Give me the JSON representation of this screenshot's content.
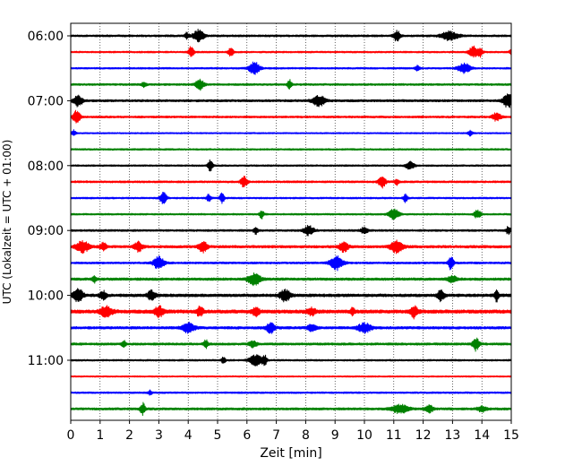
{
  "chart_data": {
    "type": "line",
    "title": "",
    "xlabel": "Zeit  [min]",
    "ylabel": "UTC (Lokalzeit = UTC + 01:00)",
    "xlim": [
      0,
      15
    ],
    "x_ticks": [
      "0",
      "1",
      "2",
      "3",
      "4",
      "5",
      "6",
      "7",
      "8",
      "9",
      "10",
      "11",
      "12",
      "13",
      "14",
      "15"
    ],
    "y_ticks": [
      "06:00",
      "07:00",
      "08:00",
      "09:00",
      "10:00",
      "11:00"
    ],
    "grid": "vertical dotted lines at each minute",
    "trace_interval_min": 15,
    "start_time": "06:00",
    "colors_cycle": [
      "#000000",
      "#ff0000",
      "#0000ff",
      "#008000"
    ],
    "traces": [
      {
        "start": "06:00",
        "color": "#000000",
        "noise": 0.35,
        "events": [
          [
            4.35,
            2.2,
            0.12
          ],
          [
            11.1,
            1.8,
            0.08
          ],
          [
            12.9,
            1.5,
            0.2
          ],
          [
            3.95,
            1.0,
            0.05
          ]
        ]
      },
      {
        "start": "06:15",
        "color": "#ff0000",
        "noise": 0.3,
        "events": [
          [
            4.1,
            2.0,
            0.06
          ],
          [
            5.45,
            1.4,
            0.06
          ],
          [
            13.7,
            2.0,
            0.1
          ],
          [
            13.95,
            1.6,
            0.06
          ],
          [
            15.0,
            1.2,
            0.04
          ]
        ]
      },
      {
        "start": "06:30",
        "color": "#0000ff",
        "noise": 0.3,
        "events": [
          [
            6.25,
            2.4,
            0.12
          ],
          [
            13.4,
            1.7,
            0.15
          ],
          [
            11.8,
            1.1,
            0.05
          ]
        ]
      },
      {
        "start": "06:45",
        "color": "#008000",
        "noise": 0.35,
        "events": [
          [
            4.4,
            1.8,
            0.1
          ],
          [
            7.45,
            1.6,
            0.05
          ],
          [
            2.5,
            0.9,
            0.05
          ]
        ]
      },
      {
        "start": "07:00",
        "color": "#000000",
        "noise": 0.4,
        "events": [
          [
            0.25,
            2.0,
            0.1
          ],
          [
            8.45,
            1.8,
            0.15
          ],
          [
            14.9,
            2.4,
            0.12
          ]
        ]
      },
      {
        "start": "07:15",
        "color": "#ff0000",
        "noise": 0.35,
        "events": [
          [
            0.2,
            2.4,
            0.08
          ],
          [
            14.5,
            1.4,
            0.1
          ]
        ]
      },
      {
        "start": "07:30",
        "color": "#0000ff",
        "noise": 0.25,
        "events": [
          [
            0.1,
            1.0,
            0.05
          ],
          [
            13.6,
            1.1,
            0.05
          ]
        ]
      },
      {
        "start": "07:45",
        "color": "#008000",
        "noise": 0.3,
        "events": []
      },
      {
        "start": "08:00",
        "color": "#000000",
        "noise": 0.3,
        "events": [
          [
            4.75,
            1.8,
            0.06
          ],
          [
            11.55,
            1.3,
            0.1
          ]
        ]
      },
      {
        "start": "08:15",
        "color": "#ff0000",
        "noise": 0.35,
        "events": [
          [
            5.9,
            1.8,
            0.08
          ],
          [
            10.6,
            2.2,
            0.08
          ],
          [
            11.1,
            1.2,
            0.05
          ]
        ]
      },
      {
        "start": "08:30",
        "color": "#0000ff",
        "noise": 0.3,
        "events": [
          [
            3.15,
            2.0,
            0.08
          ],
          [
            4.7,
            1.4,
            0.05
          ],
          [
            5.15,
            2.0,
            0.05
          ],
          [
            11.4,
            1.4,
            0.05
          ]
        ]
      },
      {
        "start": "08:45",
        "color": "#008000",
        "noise": 0.3,
        "events": [
          [
            6.5,
            1.6,
            0.05
          ],
          [
            11.0,
            1.8,
            0.12
          ],
          [
            13.85,
            1.4,
            0.08
          ]
        ]
      },
      {
        "start": "09:00",
        "color": "#000000",
        "noise": 0.35,
        "events": [
          [
            6.3,
            1.2,
            0.05
          ],
          [
            8.1,
            1.6,
            0.12
          ],
          [
            10.0,
            1.2,
            0.08
          ],
          [
            14.9,
            1.4,
            0.05
          ]
        ]
      },
      {
        "start": "09:15",
        "color": "#ff0000",
        "noise": 0.45,
        "events": [
          [
            0.4,
            2.0,
            0.15
          ],
          [
            2.3,
            1.6,
            0.1
          ],
          [
            4.5,
            2.0,
            0.1
          ],
          [
            9.3,
            1.8,
            0.1
          ],
          [
            11.1,
            2.0,
            0.15
          ],
          [
            1.1,
            1.2,
            0.08
          ]
        ]
      },
      {
        "start": "09:30",
        "color": "#0000ff",
        "noise": 0.35,
        "events": [
          [
            3.0,
            2.4,
            0.12
          ],
          [
            9.05,
            2.4,
            0.15
          ],
          [
            12.95,
            2.6,
            0.06
          ]
        ]
      },
      {
        "start": "09:45",
        "color": "#008000",
        "noise": 0.45,
        "events": [
          [
            6.25,
            2.0,
            0.15
          ],
          [
            0.8,
            1.2,
            0.05
          ],
          [
            13.0,
            1.2,
            0.1
          ]
        ]
      },
      {
        "start": "10:00",
        "color": "#000000",
        "noise": 0.5,
        "events": [
          [
            0.25,
            2.2,
            0.12
          ],
          [
            2.75,
            1.6,
            0.1
          ],
          [
            7.3,
            2.0,
            0.12
          ],
          [
            12.6,
            1.8,
            0.08
          ],
          [
            14.5,
            2.0,
            0.05
          ],
          [
            1.1,
            1.4,
            0.08
          ]
        ]
      },
      {
        "start": "10:15",
        "color": "#ff0000",
        "noise": 0.6,
        "events": [
          [
            1.2,
            1.6,
            0.15
          ],
          [
            3.0,
            1.8,
            0.1
          ],
          [
            4.4,
            1.6,
            0.08
          ],
          [
            6.3,
            1.5,
            0.08
          ],
          [
            11.7,
            2.2,
            0.08
          ],
          [
            8.2,
            1.2,
            0.1
          ],
          [
            9.6,
            1.2,
            0.05
          ]
        ]
      },
      {
        "start": "10:30",
        "color": "#0000ff",
        "noise": 0.45,
        "events": [
          [
            4.0,
            1.6,
            0.15
          ],
          [
            6.8,
            1.8,
            0.1
          ],
          [
            10.0,
            1.6,
            0.15
          ],
          [
            8.2,
            1.2,
            0.1
          ]
        ]
      },
      {
        "start": "10:45",
        "color": "#008000",
        "noise": 0.4,
        "events": [
          [
            1.8,
            1.2,
            0.05
          ],
          [
            4.6,
            1.4,
            0.05
          ],
          [
            13.8,
            2.2,
            0.08
          ],
          [
            6.2,
            1.0,
            0.1
          ]
        ]
      },
      {
        "start": "11:00",
        "color": "#000000",
        "noise": 0.3,
        "events": [
          [
            6.3,
            1.8,
            0.15
          ],
          [
            6.6,
            1.6,
            0.06
          ],
          [
            5.2,
            1.0,
            0.05
          ]
        ]
      },
      {
        "start": "11:15",
        "color": "#ff0000",
        "noise": 0.25,
        "events": []
      },
      {
        "start": "11:30",
        "color": "#0000ff",
        "noise": 0.3,
        "events": [
          [
            2.7,
            0.9,
            0.04
          ]
        ]
      },
      {
        "start": "11:45",
        "color": "#008000",
        "noise": 0.4,
        "events": [
          [
            2.45,
            2.0,
            0.06
          ],
          [
            11.2,
            1.4,
            0.2
          ],
          [
            12.2,
            1.2,
            0.1
          ],
          [
            14.0,
            1.0,
            0.1
          ]
        ]
      }
    ]
  }
}
